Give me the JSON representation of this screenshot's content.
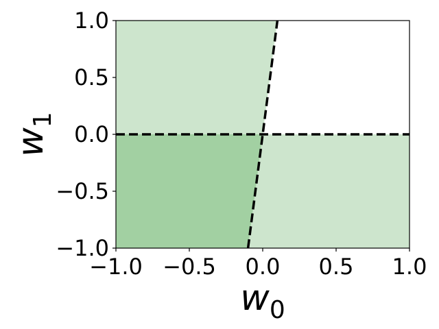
{
  "chart_data": {
    "type": "area",
    "title": "",
    "xlabel": "w",
    "xlabel_sub": "0",
    "ylabel": "w",
    "ylabel_sub": "1",
    "xlim": [
      -1.0,
      1.0
    ],
    "ylim": [
      -1.0,
      1.0
    ],
    "xticks": [
      -1.0,
      -0.5,
      0.0,
      0.5,
      1.0
    ],
    "xtick_labels": [
      "−1.0",
      "−0.5",
      "0.0",
      "0.5",
      "1.0"
    ],
    "yticks": [
      -1.0,
      -0.5,
      0.0,
      0.5,
      1.0
    ],
    "ytick_labels": [
      "−1.0",
      "−0.5",
      "0.0",
      "0.5",
      "1.0"
    ],
    "grid": false,
    "boundary_lines": [
      {
        "style": "dashed",
        "color": "#000000",
        "points": [
          [
            -1.0,
            0.0
          ],
          [
            1.0,
            0.0
          ]
        ]
      },
      {
        "style": "dashed",
        "color": "#000000",
        "points": [
          [
            -0.1,
            -1.0
          ],
          [
            0.1,
            1.0
          ]
        ]
      }
    ],
    "regions": [
      {
        "color": "#cde5cd",
        "polygon": [
          [
            -1.0,
            0.0
          ],
          [
            0.0,
            0.0
          ],
          [
            0.1,
            1.0
          ],
          [
            -1.0,
            1.0
          ]
        ]
      },
      {
        "color": "#cde5cd",
        "polygon": [
          [
            0.0,
            0.0
          ],
          [
            1.0,
            0.0
          ],
          [
            1.0,
            -1.0
          ],
          [
            -0.1,
            -1.0
          ]
        ]
      },
      {
        "color": "#a2d0a2",
        "polygon": [
          [
            -1.0,
            0.0
          ],
          [
            0.0,
            0.0
          ],
          [
            -0.1,
            -1.0
          ],
          [
            -1.0,
            -1.0
          ]
        ]
      }
    ]
  }
}
